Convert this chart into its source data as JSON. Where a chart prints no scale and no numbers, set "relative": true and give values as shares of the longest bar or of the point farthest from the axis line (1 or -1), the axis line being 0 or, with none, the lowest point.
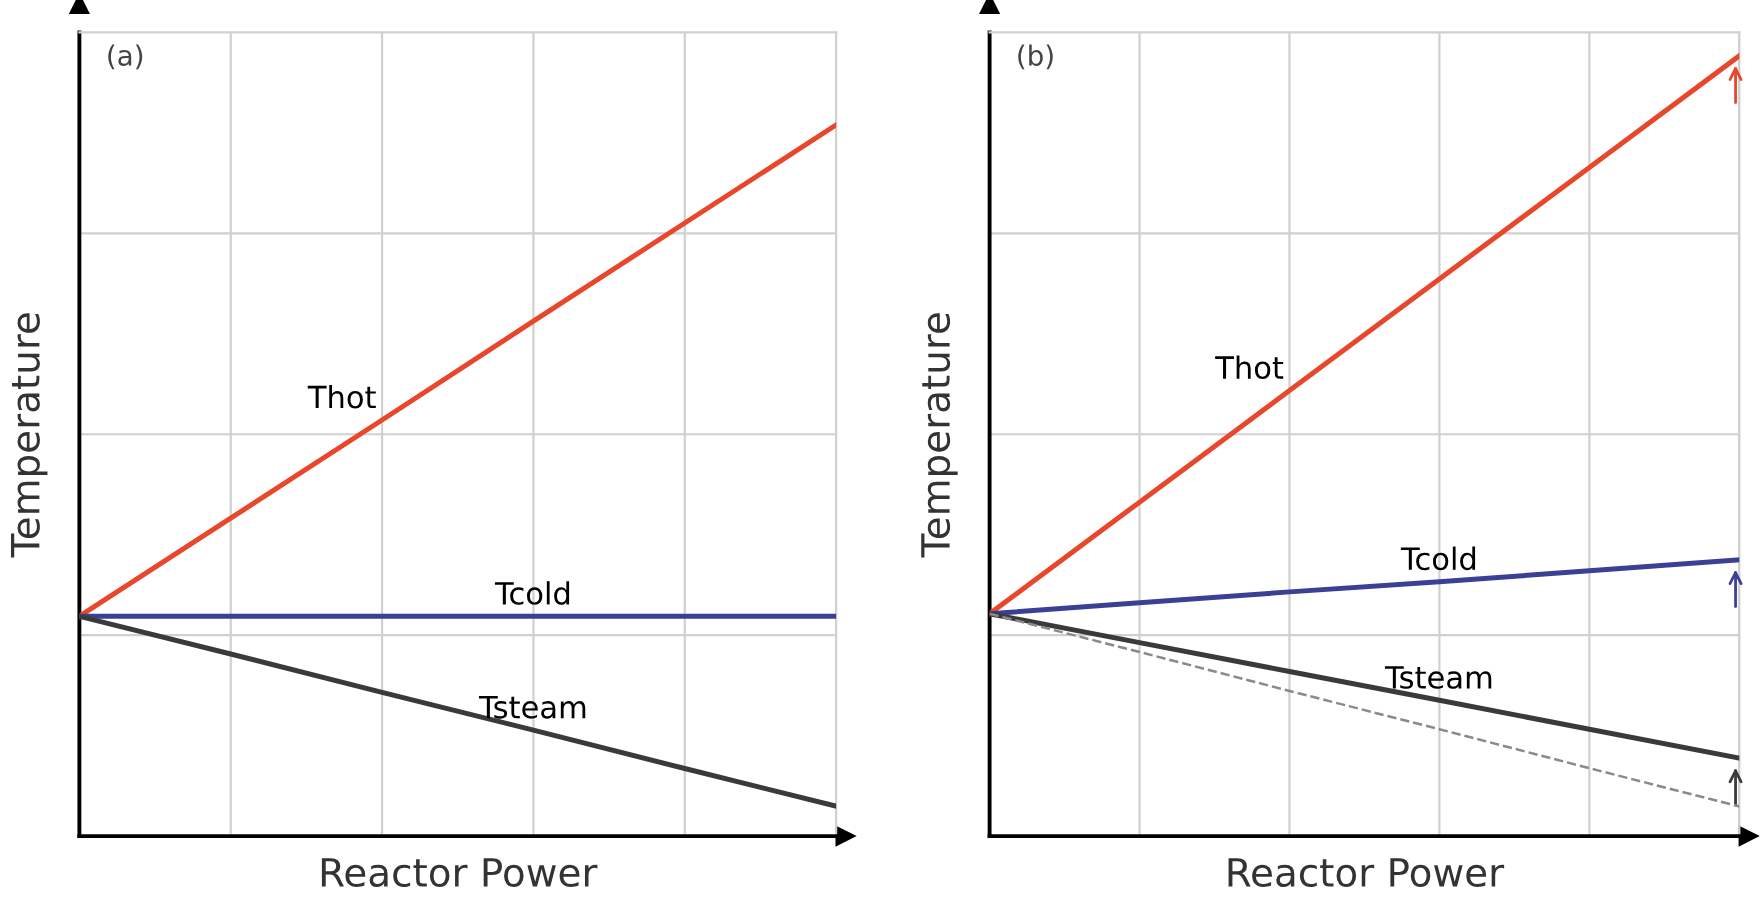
{
  "chart_data": [
    {
      "type": "line",
      "relative": true,
      "xlabel": "Reactor Power",
      "ylabel": "Temperature",
      "annotations": [
        "(a)"
      ],
      "grid": true,
      "legend": false,
      "marker": "none",
      "categories": [
        null,
        null,
        null,
        null,
        null,
        null
      ],
      "series": [
        {
          "name": "Thot",
          "color": "#e8472b",
          "values": [
            0.309,
            0.447,
            0.585,
            0.724,
            0.862,
            1
          ]
        },
        {
          "name": "Tcold",
          "color": "#3b3f96",
          "values": [
            0.309,
            0.309,
            0.309,
            0.309,
            0.309,
            0.309
          ]
        },
        {
          "name": "Tsteam",
          "color": "#3a3a3a",
          "values": [
            0.309,
            0.256,
            0.202,
            0.149,
            0.095,
            0.042
          ]
        }
      ]
    },
    {
      "type": "line",
      "relative": true,
      "xlabel": "Reactor Power",
      "ylabel": "Temperature",
      "annotations": [
        "(b)"
      ],
      "grid": true,
      "legend": false,
      "marker": "none",
      "categories": [
        null,
        null,
        null,
        null,
        null,
        null
      ],
      "series": [
        {
          "name": "Thot",
          "color": "#e8472b",
          "values": [
            0.285,
            0.428,
            0.571,
            0.714,
            0.857,
            1
          ]
        },
        {
          "name": "Tcold",
          "color": "#3b3f96",
          "values": [
            0.285,
            0.299,
            0.313,
            0.326,
            0.34,
            0.354
          ]
        },
        {
          "name": "Tsteam",
          "color": "#3a3a3a",
          "values": [
            0.285,
            0.248,
            0.211,
            0.174,
            0.137,
            0.1
          ]
        },
        {
          "color": "#8a8a8a",
          "line_style": "dashed",
          "values": [
            0.285,
            0.236,
            0.186,
            0.137,
            0.087,
            0.038
          ]
        }
      ]
    }
  ]
}
